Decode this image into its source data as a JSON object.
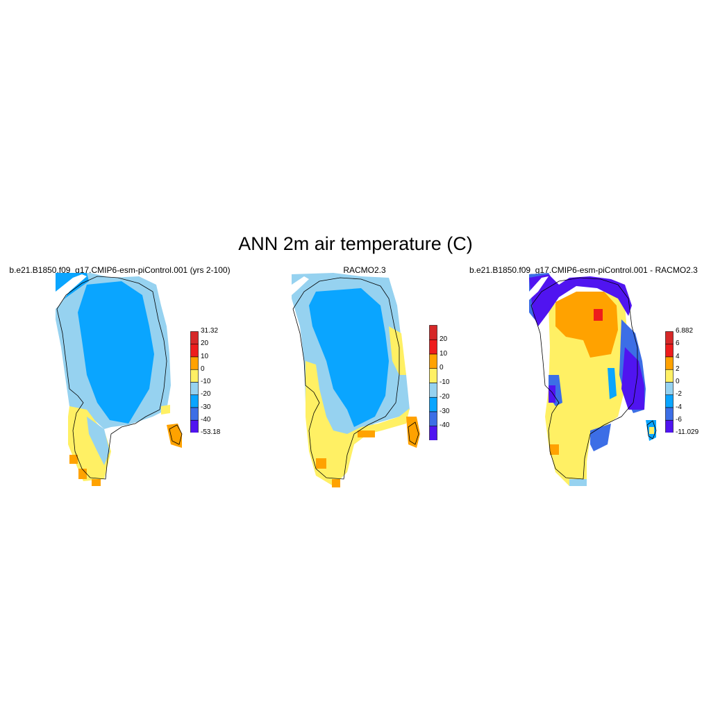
{
  "title": "ANN 2m air temperature (C)",
  "panels": [
    {
      "title": "b.e21.B1850.f09_g17.CMIP6-esm-piControl.001 (yrs 2-100)",
      "colorbar": {
        "labels": [
          "31.32",
          "20",
          "10",
          "0",
          "-10",
          "-20",
          "-30",
          "-40",
          "-53.18"
        ],
        "colors": [
          "#d62828",
          "#ee1c1c",
          "#ffa200",
          "#fff064",
          "#96d2f0",
          "#0aa5ff",
          "#3c6ee6",
          "#5014f0"
        ]
      }
    },
    {
      "title": "RACMO2.3",
      "colorbar": {
        "labels": [
          "20",
          "10",
          "0",
          "-10",
          "-20",
          "-30",
          "-40"
        ],
        "colors": [
          "#d62828",
          "#ee1c1c",
          "#ffa200",
          "#fff064",
          "#96d2f0",
          "#0aa5ff",
          "#3c6ee6",
          "#5014f0"
        ]
      }
    },
    {
      "title": "b.e21.B1850.f09_g17.CMIP6-esm-piControl.001 - RACMO2.3",
      "colorbar": {
        "labels": [
          "6.882",
          "6",
          "4",
          "2",
          "0",
          "-2",
          "-4",
          "-6",
          "-11.029"
        ],
        "colors": [
          "#d62828",
          "#ee1c1c",
          "#ffa200",
          "#fff064",
          "#96d2f0",
          "#0aa5ff",
          "#3c6ee6",
          "#5014f0"
        ]
      }
    }
  ]
}
